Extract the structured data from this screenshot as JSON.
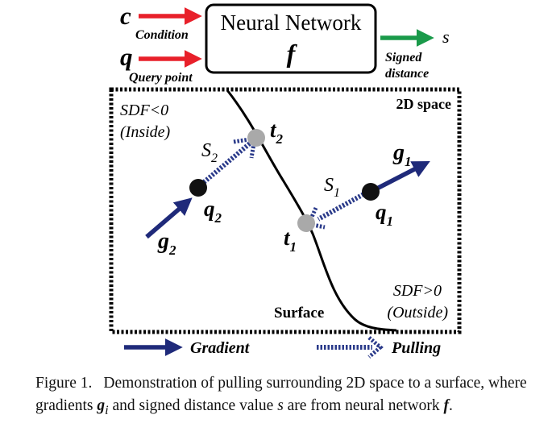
{
  "network": {
    "title": "Neural Network",
    "symbol": "f"
  },
  "inputs": {
    "condition_symbol": "c",
    "condition_label": "Condition",
    "query_symbol": "q",
    "query_label": "Query point"
  },
  "output": {
    "symbol": "s",
    "label_line1": "Signed",
    "label_line2": "distance"
  },
  "space": {
    "title": "2D space",
    "inside_line1": "SDF<0",
    "inside_line2": "(Inside)",
    "outside_line1": "SDF>0",
    "outside_line2": "(Outside)",
    "surface_label": "Surface"
  },
  "points": {
    "q1": {
      "base": "q",
      "sub": "1"
    },
    "q2": {
      "base": "q",
      "sub": "2"
    },
    "t1": {
      "base": "t",
      "sub": "1"
    },
    "t2": {
      "base": "t",
      "sub": "2"
    },
    "g1": {
      "base": "g",
      "sub": "1"
    },
    "g2": {
      "base": "g",
      "sub": "2"
    },
    "s1": {
      "base": "S",
      "sub": "1"
    },
    "s2": {
      "base": "S",
      "sub": "2"
    }
  },
  "legend": {
    "gradient": "Gradient",
    "pulling": "Pulling"
  },
  "colors": {
    "input_arrow": "#e8202a",
    "output_arrow": "#1a9a4a",
    "gradient_arrow": "#1f2a7a",
    "pulling_arrow": "#2a3a8a",
    "query_point": "#111111",
    "target_point": "#a9a9a9"
  },
  "caption": {
    "label": "Figure 1.",
    "text_a": "Demonstration of pulling surrounding 2D space to a surface, where gradients",
    "g_symbol": "g",
    "g_sub": "i",
    "text_b": "and signed distance value",
    "s_symbol": "s",
    "text_c": "are from neural network",
    "f_symbol": "f",
    "text_d": "."
  }
}
